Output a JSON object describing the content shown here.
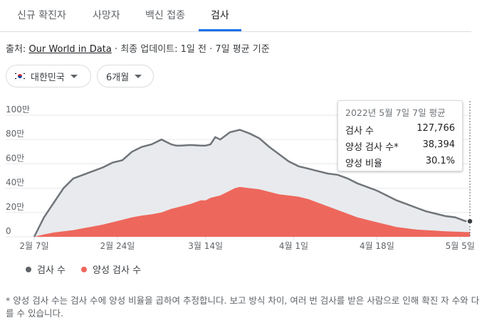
{
  "tabs": [
    "신규 확진자",
    "사망자",
    "백신 접종",
    "검사"
  ],
  "source": {
    "prefix": "출처:",
    "link": "Our World in Data",
    "suffix": "· 최종 업데이트: 1일 전 · 7일 평균 기준"
  },
  "filters": {
    "country": "대한민국",
    "period": "6개월"
  },
  "tooltip": {
    "title": "2022년 5월 7일 7일 평균",
    "rows": [
      {
        "label": "검사 수",
        "value": "127,766"
      },
      {
        "label": "양성 검사 수*",
        "value": "38,394"
      },
      {
        "label": "양성 비율",
        "value": "30.1%"
      }
    ]
  },
  "legend": {
    "tests": "검사 수",
    "positives": "양성 검사 수"
  },
  "footnote": "* 양성 검사 수는 검사 수에 양성 비율을 곱하여 추정합니다. 보고 방식 차이, 여러 번 검사를 받은 사람으로 인해 확진 자 수와 다를 수 있습니다.",
  "colors": {
    "tests_line": "#70757a",
    "tests_fill": "#e8eaed",
    "positives": "#ee675c"
  },
  "chart_data": {
    "type": "area",
    "ylim": [
      0,
      1000000
    ],
    "yticks": [
      0,
      200000,
      400000,
      600000,
      800000,
      1000000
    ],
    "ytick_labels": [
      "0",
      "20만",
      "40만",
      "60만",
      "80만",
      "100만"
    ],
    "xtick_labels": [
      "2월 7일",
      "2월 24일",
      "3월 14일",
      "4월 1일",
      "4월 18일",
      "5월 5일"
    ],
    "xtick_day_index": [
      0,
      17,
      35,
      53,
      70,
      87
    ],
    "grid": true,
    "legend_position": "bottom",
    "series": [
      {
        "name": "검사 수",
        "x": [
          0,
          2,
          4,
          6,
          8,
          10,
          12,
          14,
          16,
          18,
          20,
          21,
          22,
          24,
          26,
          28,
          29,
          30,
          32,
          34,
          35,
          36,
          37,
          38,
          40,
          42,
          44,
          46,
          48,
          50,
          52,
          54,
          56,
          58,
          60,
          62,
          64,
          66,
          68,
          70,
          72,
          74,
          76,
          78,
          80,
          82,
          84,
          86,
          88,
          89
        ],
        "values": [
          0,
          160000,
          280000,
          400000,
          480000,
          510000,
          540000,
          570000,
          610000,
          630000,
          700000,
          720000,
          740000,
          760000,
          800000,
          760000,
          750000,
          750000,
          755000,
          750000,
          750000,
          760000,
          820000,
          800000,
          860000,
          880000,
          850000,
          810000,
          740000,
          680000,
          620000,
          580000,
          560000,
          540000,
          520000,
          510000,
          480000,
          440000,
          410000,
          380000,
          340000,
          300000,
          270000,
          240000,
          210000,
          190000,
          170000,
          160000,
          130000,
          127766
        ]
      },
      {
        "name": "양성 검사 수",
        "x": [
          0,
          2,
          4,
          6,
          8,
          10,
          12,
          14,
          16,
          18,
          20,
          22,
          24,
          26,
          28,
          30,
          32,
          34,
          35,
          36,
          38,
          40,
          41,
          42,
          44,
          46,
          48,
          50,
          52,
          54,
          56,
          58,
          60,
          62,
          64,
          66,
          68,
          70,
          72,
          74,
          76,
          78,
          80,
          82,
          84,
          86,
          88,
          89
        ],
        "values": [
          0,
          20000,
          35000,
          45000,
          55000,
          70000,
          85000,
          100000,
          120000,
          140000,
          160000,
          175000,
          185000,
          200000,
          230000,
          250000,
          270000,
          300000,
          300000,
          320000,
          340000,
          380000,
          400000,
          410000,
          400000,
          390000,
          370000,
          350000,
          340000,
          330000,
          310000,
          280000,
          250000,
          220000,
          190000,
          160000,
          140000,
          120000,
          100000,
          80000,
          70000,
          60000,
          55000,
          50000,
          45000,
          42000,
          40000,
          38394
        ]
      }
    ]
  }
}
